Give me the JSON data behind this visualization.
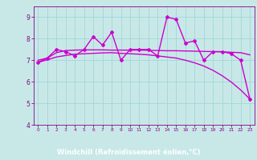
{
  "x": [
    0,
    1,
    2,
    3,
    4,
    5,
    6,
    7,
    8,
    9,
    10,
    11,
    12,
    13,
    14,
    15,
    16,
    17,
    18,
    19,
    20,
    21,
    22,
    23
  ],
  "y_main": [
    6.9,
    7.1,
    7.5,
    7.4,
    7.2,
    7.5,
    8.1,
    7.7,
    8.3,
    7.0,
    7.5,
    7.5,
    7.5,
    7.2,
    9.0,
    8.9,
    7.8,
    7.9,
    7.0,
    7.4,
    7.4,
    7.3,
    7.0,
    5.2
  ],
  "y_smooth1": [
    7.0,
    7.1,
    7.35,
    7.45,
    7.47,
    7.48,
    7.48,
    7.48,
    7.47,
    7.47,
    7.47,
    7.47,
    7.46,
    7.45,
    7.44,
    7.44,
    7.43,
    7.42,
    7.41,
    7.4,
    7.39,
    7.37,
    7.35,
    7.25
  ],
  "y_smooth2": [
    6.9,
    7.02,
    7.15,
    7.22,
    7.28,
    7.3,
    7.32,
    7.34,
    7.35,
    7.32,
    7.3,
    7.28,
    7.25,
    7.2,
    7.15,
    7.1,
    7.0,
    6.88,
    6.73,
    6.53,
    6.28,
    5.98,
    5.62,
    5.2
  ],
  "line_color": "#cc00cc",
  "bg_color": "#c8e8e8",
  "grid_color": "#a8d8d8",
  "axis_bg_color": "#7070b0",
  "text_color": "#880088",
  "axis_label_color": "#ffffff",
  "xlabel": "Windchill (Refroidissement éolien,°C)",
  "xlim": [
    -0.5,
    23.5
  ],
  "ylim": [
    4,
    9.5
  ],
  "yticks": [
    4,
    5,
    6,
    7,
    8,
    9
  ],
  "xticks": [
    0,
    1,
    2,
    3,
    4,
    5,
    6,
    7,
    8,
    9,
    10,
    11,
    12,
    13,
    14,
    15,
    16,
    17,
    18,
    19,
    20,
    21,
    22,
    23
  ]
}
